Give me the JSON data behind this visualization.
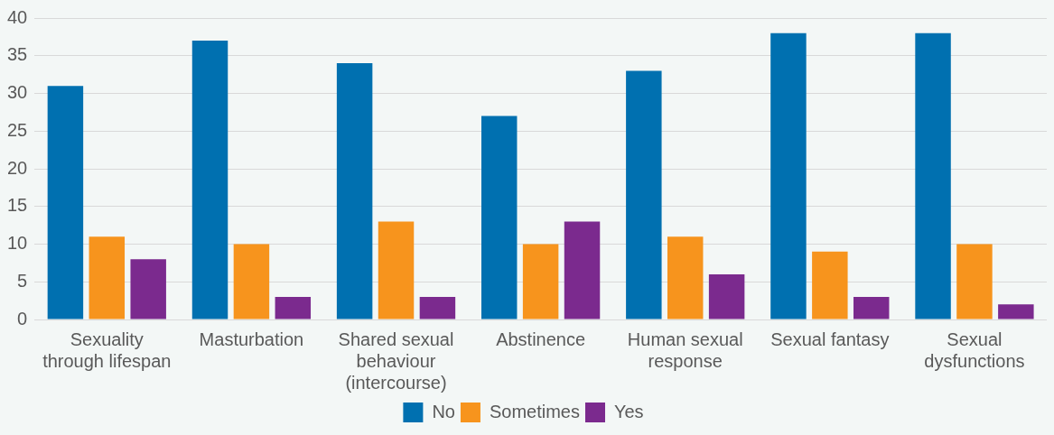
{
  "chart_data": {
    "type": "bar",
    "categories": [
      "Sexuality through lifespan",
      "Masturbation",
      "Shared sexual behaviour (intercourse)",
      "Abstinence",
      "Human sexual response",
      "Sexual fantasy",
      "Sexual dysfunctions"
    ],
    "series": [
      {
        "name": "No",
        "color": "#0070b0",
        "values": [
          31,
          37,
          34,
          27,
          33,
          38,
          38
        ]
      },
      {
        "name": "Sometimes",
        "color": "#f7941d",
        "values": [
          11,
          10,
          13,
          10,
          11,
          9,
          10
        ]
      },
      {
        "name": "Yes",
        "color": "#7b2a8e",
        "values": [
          8,
          3,
          3,
          13,
          6,
          3,
          2
        ]
      }
    ],
    "ylim": [
      0,
      40
    ],
    "yticks": [
      0,
      5,
      10,
      15,
      20,
      25,
      30,
      35,
      40
    ],
    "grid": "y",
    "legend": "bottom"
  }
}
